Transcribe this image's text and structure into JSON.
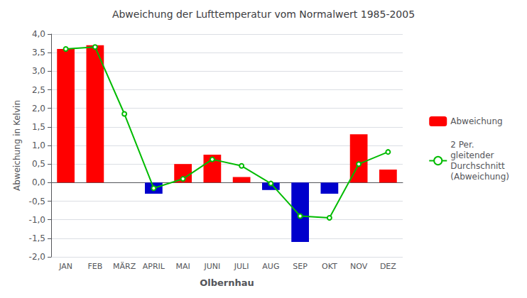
{
  "chart_data": {
    "type": "bar",
    "title": "Abweichung der Lufttemperatur vom Normalwert 1985-2005",
    "xlabel": "Olbernhau",
    "ylabel": "Abweichung in Kelvin",
    "categories": [
      "JAN",
      "FEB",
      "MÄRZ",
      "APRIL",
      "MAI",
      "JUNI",
      "JULI",
      "AUG",
      "SEP",
      "OKT",
      "NOV",
      "DEZ"
    ],
    "series": [
      {
        "name": "Abweichung",
        "type": "bar",
        "color": "#ff0000",
        "colors": [
          "#ff0000",
          "#ff0000",
          "#ff0000",
          "#0000cc",
          "#ff0000",
          "#ff0000",
          "#ff0000",
          "#0000cc",
          "#0000cc",
          "#0000cc",
          "#ff0000",
          "#ff0000"
        ],
        "values": [
          3.6,
          3.7,
          0.0,
          -0.3,
          0.5,
          0.75,
          0.15,
          -0.2,
          -1.6,
          -0.3,
          1.3,
          0.35
        ]
      },
      {
        "name": "2 Per.\ngleitender\nDurchschnitt\n(Abweichung)",
        "type": "line",
        "color": "#00bb00",
        "values": [
          3.6,
          3.65,
          1.85,
          -0.15,
          0.1,
          0.625,
          0.45,
          -0.025,
          -0.9,
          -0.95,
          0.5,
          0.825
        ]
      }
    ],
    "ylim": [
      -2.0,
      4.0
    ],
    "yticks": [
      {
        "value": -2.0,
        "label": "-2,0"
      },
      {
        "value": -1.5,
        "label": "-1,5"
      },
      {
        "value": -1.0,
        "label": "-1,0"
      },
      {
        "value": -0.5,
        "label": "-0,5"
      },
      {
        "value": 0.0,
        "label": "0,0"
      },
      {
        "value": 0.5,
        "label": "0,5"
      },
      {
        "value": 1.0,
        "label": "1,0"
      },
      {
        "value": 1.5,
        "label": "1,5"
      },
      {
        "value": 2.0,
        "label": "2,0"
      },
      {
        "value": 2.5,
        "label": "2,5"
      },
      {
        "value": 3.0,
        "label": "3,0"
      },
      {
        "value": 3.5,
        "label": "3,5"
      },
      {
        "value": 4.0,
        "label": "4,0"
      }
    ],
    "grid": true,
    "legend": "right"
  }
}
